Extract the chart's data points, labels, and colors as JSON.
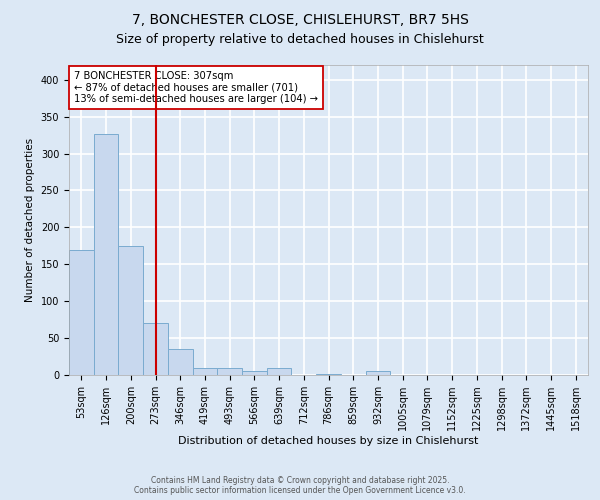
{
  "title1": "7, BONCHESTER CLOSE, CHISLEHURST, BR7 5HS",
  "title2": "Size of property relative to detached houses in Chislehurst",
  "xlabel": "Distribution of detached houses by size in Chislehurst",
  "ylabel": "Number of detached properties",
  "bar_labels": [
    "53sqm",
    "126sqm",
    "200sqm",
    "273sqm",
    "346sqm",
    "419sqm",
    "493sqm",
    "566sqm",
    "639sqm",
    "712sqm",
    "786sqm",
    "859sqm",
    "932sqm",
    "1005sqm",
    "1079sqm",
    "1152sqm",
    "1225sqm",
    "1298sqm",
    "1372sqm",
    "1445sqm",
    "1518sqm"
  ],
  "bar_values": [
    170,
    327,
    175,
    70,
    35,
    10,
    9,
    5,
    10,
    0,
    2,
    0,
    5,
    0,
    0,
    0,
    0,
    0,
    0,
    0,
    0
  ],
  "bar_color": "#c8d8ee",
  "bar_edge_color": "#7aabcf",
  "vline_x": 3.0,
  "vline_color": "#cc0000",
  "annotation_text": "7 BONCHESTER CLOSE: 307sqm\n← 87% of detached houses are smaller (701)\n13% of semi-detached houses are larger (104) →",
  "annotation_box_color": "white",
  "annotation_box_edge": "#cc0000",
  "ylim": [
    0,
    420
  ],
  "yticks": [
    0,
    50,
    100,
    150,
    200,
    250,
    300,
    350,
    400
  ],
  "footer1": "Contains HM Land Registry data © Crown copyright and database right 2025.",
  "footer2": "Contains public sector information licensed under the Open Government Licence v3.0.",
  "background_color": "#dce8f5",
  "axes_bg_color": "#dce8f5",
  "grid_color": "white",
  "title1_fontsize": 10,
  "title2_fontsize": 9,
  "xlabel_fontsize": 8,
  "ylabel_fontsize": 7.5,
  "tick_fontsize": 7,
  "footer_fontsize": 5.5
}
